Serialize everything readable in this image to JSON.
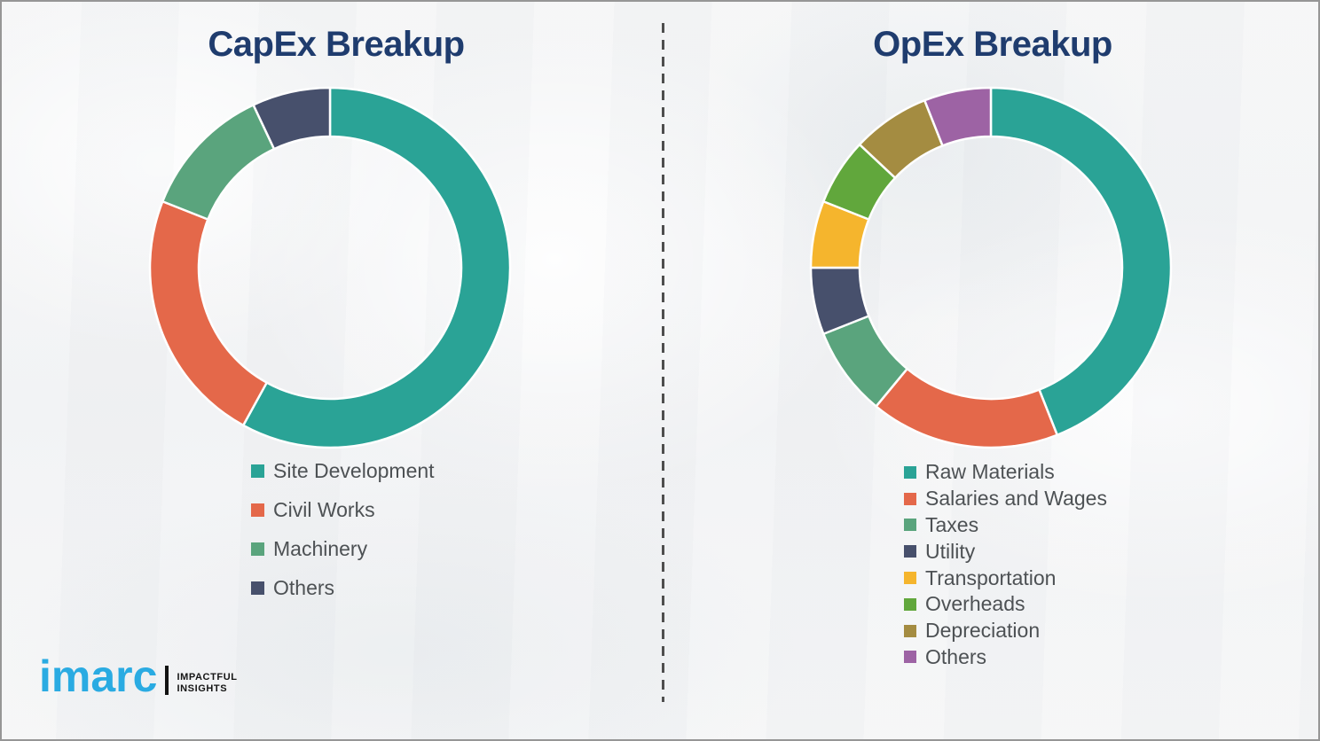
{
  "chart_data": [
    {
      "type": "pie",
      "subtype": "donut",
      "title": "CapEx Breakup",
      "labels": [
        "Site Development",
        "Civil Works",
        "Machinery",
        "Others"
      ],
      "values": [
        58,
        23,
        12,
        7
      ],
      "unit": "percent-estimated-from-arc-angles",
      "colors": [
        "#2aa396",
        "#e4684a",
        "#5aa47d",
        "#47506c"
      ],
      "start_angle_deg": 0,
      "direction": "clockwise",
      "hole_ratio": 0.73,
      "legend_position": "below-left",
      "data_labels_shown": false
    },
    {
      "type": "pie",
      "subtype": "donut",
      "title": "OpEx Breakup",
      "labels": [
        "Raw Materials",
        "Salaries and Wages",
        "Taxes",
        "Utility",
        "Transportation",
        "Overheads",
        "Depreciation",
        "Others"
      ],
      "values": [
        44,
        17,
        8,
        6,
        6,
        6,
        7,
        6
      ],
      "unit": "percent-estimated-from-arc-angles",
      "colors": [
        "#2aa396",
        "#e4684a",
        "#5aa47d",
        "#47506c",
        "#f5b52d",
        "#61a73c",
        "#a48c41",
        "#9d63a4"
      ],
      "start_angle_deg": 0,
      "direction": "clockwise",
      "hole_ratio": 0.73,
      "legend_position": "below-left",
      "data_labels_shown": false
    }
  ],
  "branding": {
    "logo_text": "imarc",
    "tagline_lines": [
      "IMPACTFUL",
      "INSIGHTS"
    ],
    "logo_color": "#2aabe2",
    "tagline_color": "#141414"
  },
  "style": {
    "title_color": "#1f3c6e",
    "legend_text_color": "#4d5154",
    "divider_color": "#4e4e4e",
    "background_color": "#f3f4f5",
    "border_color": "#969696",
    "segment_outline_color": "#ffffff"
  }
}
